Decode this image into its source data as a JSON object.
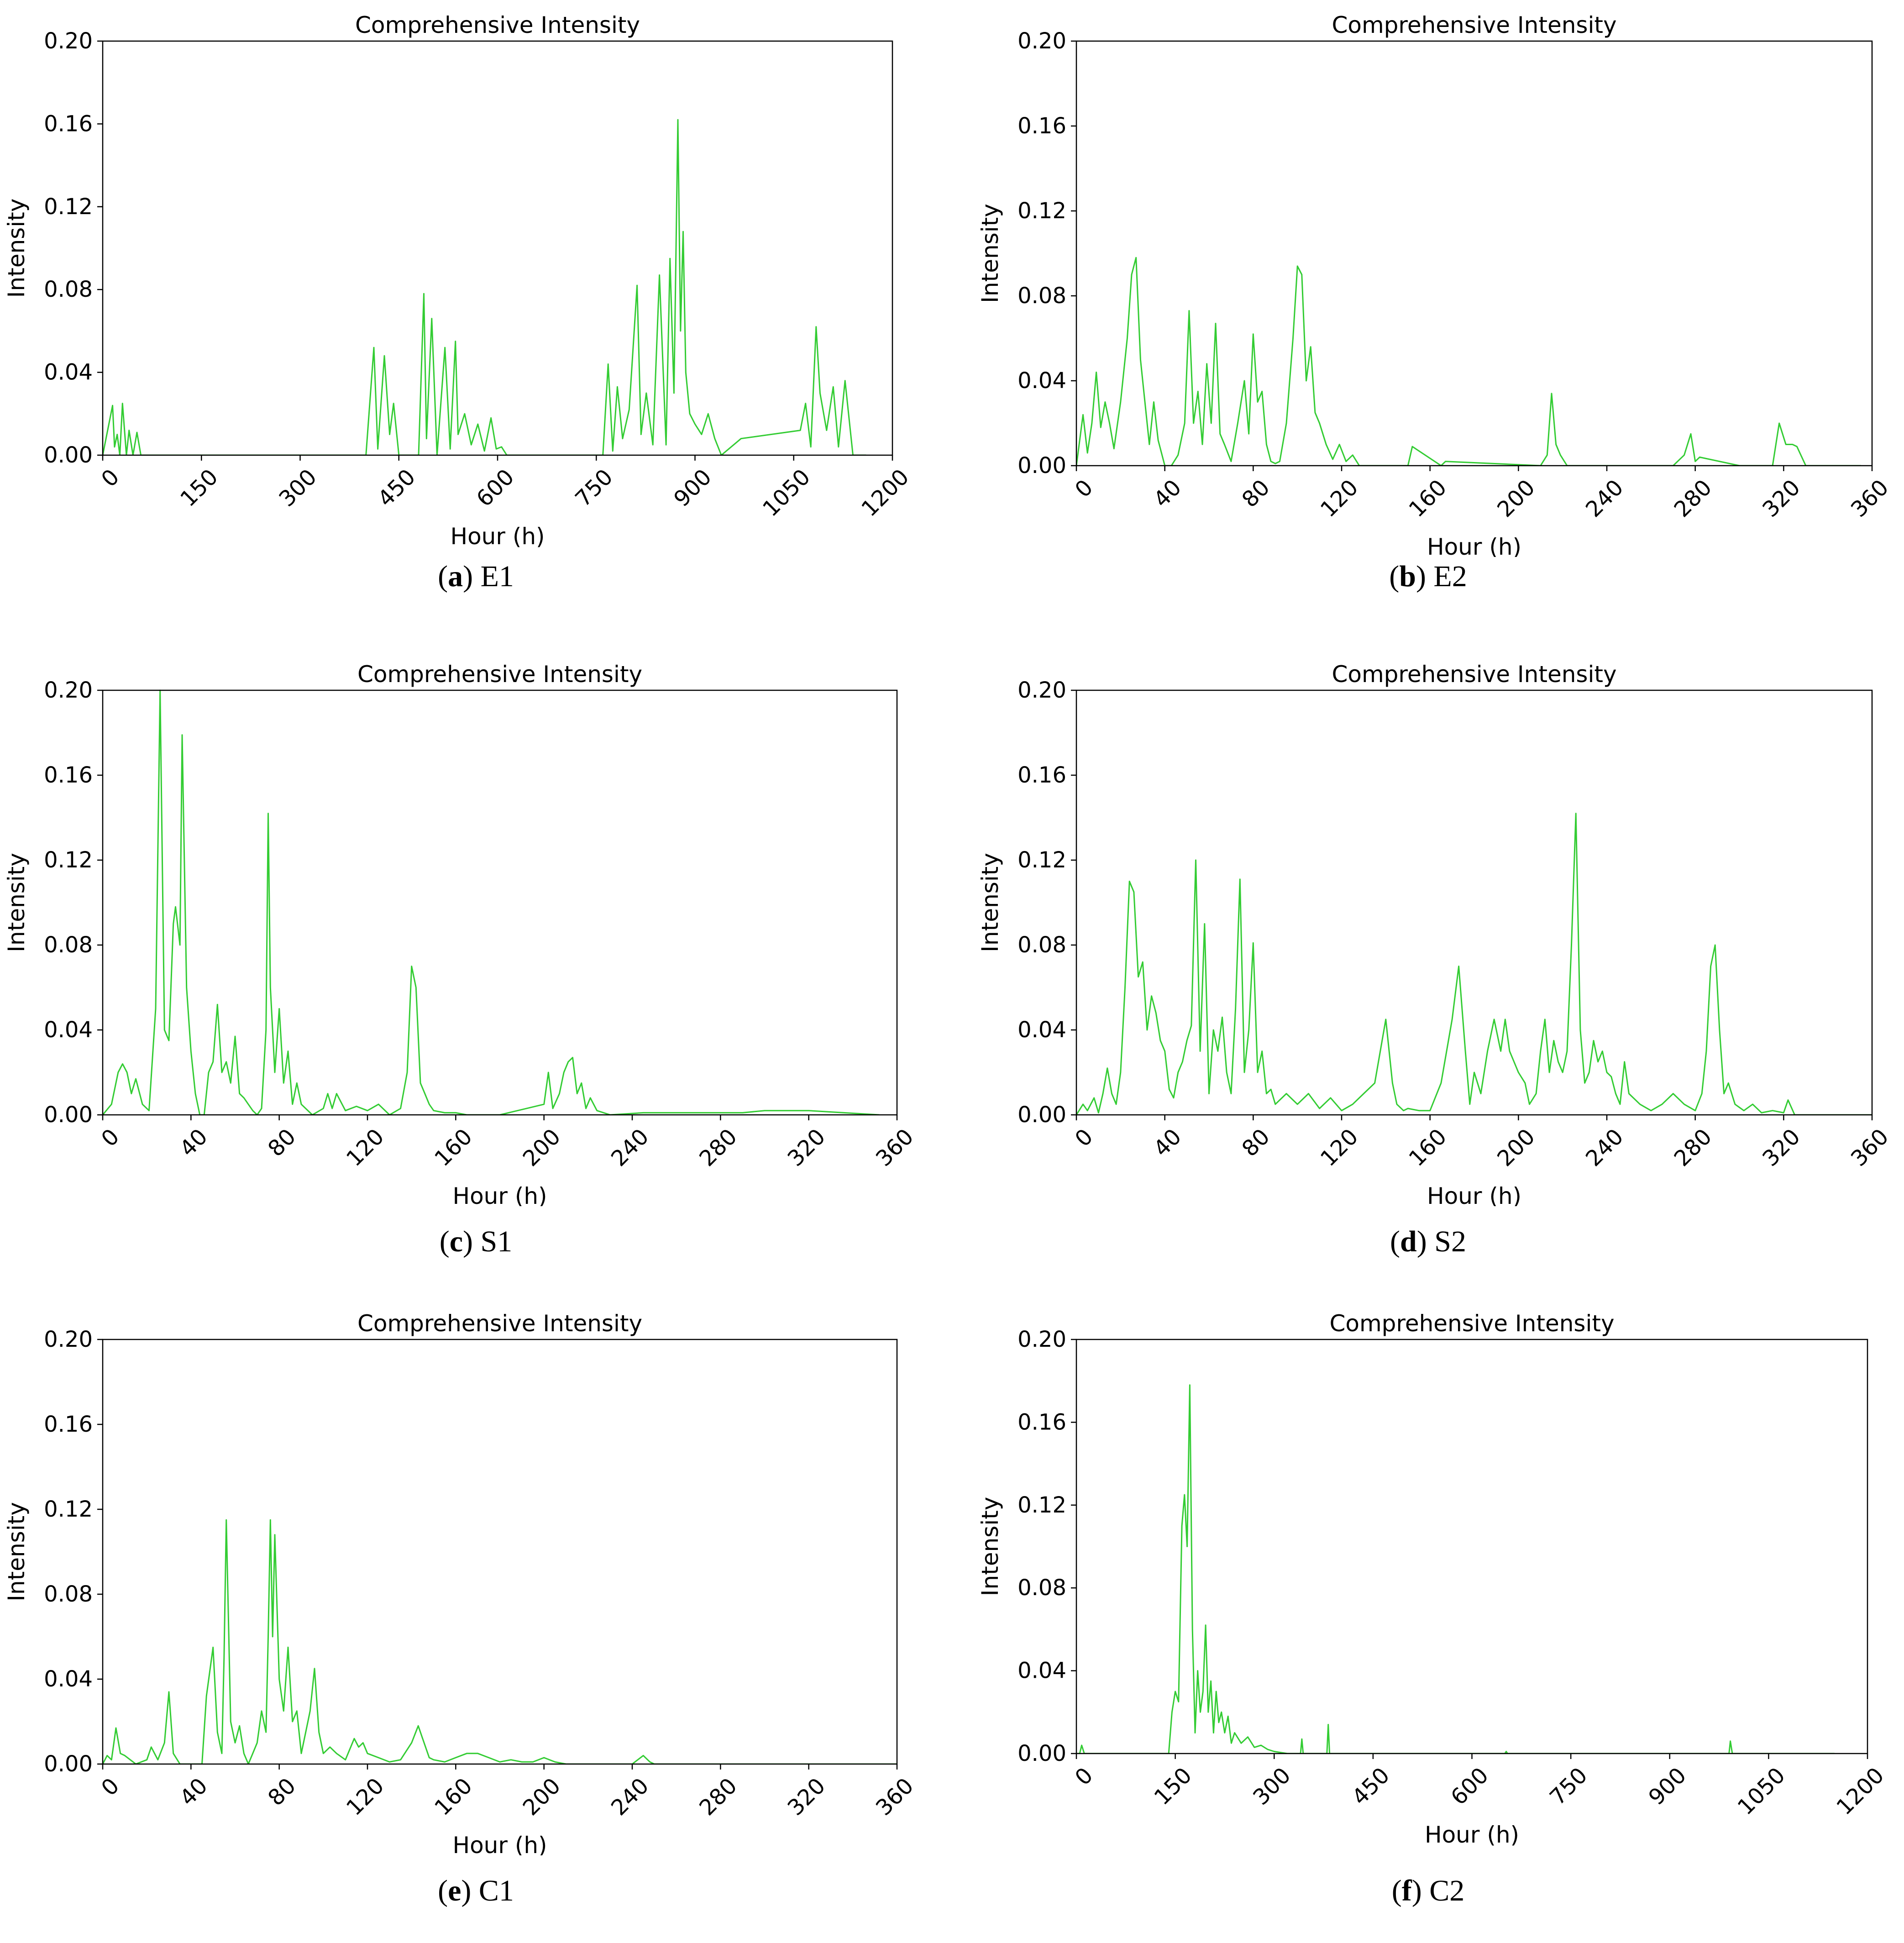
{
  "colors": {
    "line": "#33cc33",
    "axes": "#000000",
    "background": "#ffffff"
  },
  "panels": [
    {
      "letter": "a",
      "name": "E1",
      "title": "Comprehensive Intensity",
      "xlabel": "Hour (h)",
      "ylabel": "Intensity",
      "xticks": [
        "0",
        "150",
        "300",
        "450",
        "600",
        "750",
        "900",
        "1050",
        "1200"
      ],
      "yticks": [
        "0.00",
        "0.04",
        "0.08",
        "0.12",
        "0.16",
        "0.20"
      ]
    },
    {
      "letter": "b",
      "name": "E2",
      "title": "Comprehensive Intensity",
      "xlabel": "Hour (h)",
      "ylabel": "Intensity",
      "xticks": [
        "0",
        "40",
        "80",
        "120",
        "160",
        "200",
        "240",
        "280",
        "320",
        "360"
      ],
      "yticks": [
        "0.00",
        "0.04",
        "0.08",
        "0.12",
        "0.16",
        "0.20"
      ]
    },
    {
      "letter": "c",
      "name": "S1",
      "title": "Comprehensive Intensity",
      "xlabel": "Hour (h)",
      "ylabel": "Intensity",
      "xticks": [
        "0",
        "40",
        "80",
        "120",
        "160",
        "200",
        "240",
        "280",
        "320",
        "360"
      ],
      "yticks": [
        "0.00",
        "0.04",
        "0.08",
        "0.12",
        "0.16",
        "0.20"
      ]
    },
    {
      "letter": "d",
      "name": "S2",
      "title": "Comprehensive Intensity",
      "xlabel": "Hour (h)",
      "ylabel": "Intensity",
      "xticks": [
        "0",
        "40",
        "80",
        "120",
        "160",
        "200",
        "240",
        "280",
        "320",
        "360"
      ],
      "yticks": [
        "0.00",
        "0.04",
        "0.08",
        "0.12",
        "0.16",
        "0.20"
      ]
    },
    {
      "letter": "e",
      "name": "C1",
      "title": "Comprehensive Intensity",
      "xlabel": "Hour (h)",
      "ylabel": "Intensity",
      "xticks": [
        "0",
        "40",
        "80",
        "120",
        "160",
        "200",
        "240",
        "280",
        "320",
        "360"
      ],
      "yticks": [
        "0.00",
        "0.04",
        "0.08",
        "0.12",
        "0.16",
        "0.20"
      ]
    },
    {
      "letter": "f",
      "name": "C2",
      "title": "Comprehensive Intensity",
      "xlabel": "Hour (h)",
      "ylabel": "Intensity",
      "xticks": [
        "0",
        "150",
        "300",
        "450",
        "600",
        "750",
        "900",
        "1050",
        "1200"
      ],
      "yticks": [
        "0.00",
        "0.04",
        "0.08",
        "0.12",
        "0.16",
        "0.20"
      ]
    }
  ],
  "chart_data": [
    {
      "type": "line",
      "title": "Comprehensive Intensity",
      "xlabel": "Hour (h)",
      "ylabel": "Intensity",
      "xlim": [
        0,
        1200
      ],
      "ylim": [
        0,
        0.2
      ],
      "grid": false,
      "x": [
        0,
        15,
        18,
        22,
        26,
        30,
        36,
        40,
        46,
        52,
        58,
        64,
        400,
        412,
        418,
        428,
        436,
        442,
        450,
        480,
        488,
        492,
        500,
        508,
        520,
        528,
        536,
        540,
        550,
        560,
        570,
        580,
        590,
        598,
        606,
        614,
        760,
        768,
        775,
        782,
        790,
        800,
        812,
        818,
        826,
        836,
        846,
        856,
        862,
        868,
        874,
        878,
        882,
        886,
        892,
        900,
        910,
        920,
        930,
        940,
        970,
        1060,
        1068,
        1076,
        1084,
        1090,
        1100,
        1110,
        1118,
        1128,
        1140,
        1160
      ],
      "y": [
        0,
        0.024,
        0.004,
        0.01,
        0,
        0.025,
        0,
        0.012,
        0,
        0.011,
        0,
        0,
        0,
        0.052,
        0.003,
        0.048,
        0.01,
        0.025,
        0,
        0,
        0.078,
        0.008,
        0.066,
        0,
        0.052,
        0.003,
        0.055,
        0.01,
        0.02,
        0.005,
        0.015,
        0.002,
        0.018,
        0.003,
        0.004,
        0,
        0,
        0.044,
        0.002,
        0.033,
        0.008,
        0.022,
        0.082,
        0.01,
        0.03,
        0.005,
        0.087,
        0.005,
        0.095,
        0.03,
        0.162,
        0.06,
        0.108,
        0.04,
        0.02,
        0.015,
        0.01,
        0.02,
        0.008,
        0,
        0.008,
        0.012,
        0.025,
        0.004,
        0.062,
        0.03,
        0.012,
        0.033,
        0.004,
        0.036,
        0,
        0
      ]
    },
    {
      "type": "line",
      "title": "Comprehensive Intensity",
      "xlabel": "Hour (h)",
      "ylabel": "Intensity",
      "xlim": [
        0,
        360
      ],
      "ylim": [
        0,
        0.2
      ],
      "grid": false,
      "x": [
        0,
        3,
        5,
        7,
        9,
        11,
        13,
        15,
        17,
        20,
        23,
        25,
        27,
        29,
        31,
        33,
        35,
        37,
        40,
        43,
        46,
        49,
        51,
        53,
        55,
        57,
        59,
        61,
        63,
        65,
        67,
        70,
        73,
        76,
        78,
        80,
        82,
        84,
        86,
        88,
        90,
        92,
        95,
        98,
        100,
        102,
        104,
        106,
        108,
        110,
        113,
        116,
        119,
        122,
        125,
        128,
        131,
        135,
        150,
        152,
        165,
        167,
        210,
        213,
        215,
        217,
        219,
        222,
        270,
        275,
        278,
        280,
        282,
        300,
        315,
        318,
        321,
        324,
        326,
        330,
        355
      ],
      "y": [
        0,
        0.024,
        0.006,
        0.02,
        0.044,
        0.018,
        0.03,
        0.02,
        0.008,
        0.03,
        0.06,
        0.09,
        0.098,
        0.05,
        0.03,
        0.01,
        0.03,
        0.012,
        0,
        0,
        0.005,
        0.02,
        0.073,
        0.02,
        0.035,
        0.01,
        0.048,
        0.02,
        0.067,
        0.015,
        0.01,
        0.002,
        0.02,
        0.04,
        0.015,
        0.062,
        0.03,
        0.035,
        0.01,
        0.002,
        0.001,
        0.002,
        0.02,
        0.06,
        0.094,
        0.09,
        0.04,
        0.056,
        0.025,
        0.02,
        0.01,
        0.003,
        0.01,
        0.002,
        0.005,
        0,
        0,
        0,
        0,
        0.009,
        0,
        0.002,
        0,
        0.005,
        0.034,
        0.01,
        0.005,
        0,
        0,
        0.005,
        0.015,
        0.002,
        0.004,
        0,
        0,
        0.02,
        0.01,
        0.01,
        0.009,
        0,
        0
      ]
    },
    {
      "type": "line",
      "title": "Comprehensive Intensity",
      "xlabel": "Hour (h)",
      "ylabel": "Intensity",
      "xlim": [
        0,
        360
      ],
      "ylim": [
        0,
        0.2
      ],
      "grid": false,
      "x": [
        0,
        4,
        7,
        9,
        11,
        13,
        15,
        18,
        21,
        24,
        26,
        28,
        30,
        32,
        33,
        35,
        36,
        38,
        40,
        42,
        44,
        46,
        48,
        50,
        52,
        54,
        56,
        58,
        60,
        62,
        64,
        66,
        68,
        70,
        72,
        74,
        75,
        76,
        78,
        80,
        82,
        84,
        86,
        88,
        90,
        95,
        100,
        102,
        104,
        106,
        110,
        115,
        120,
        125,
        130,
        135,
        138,
        140,
        142,
        144,
        146,
        148,
        150,
        155,
        160,
        165,
        180,
        200,
        202,
        204,
        207,
        209,
        211,
        213,
        215,
        217,
        219,
        221,
        224,
        230,
        245,
        290,
        300,
        320,
        352
      ],
      "y": [
        0,
        0.005,
        0.02,
        0.024,
        0.02,
        0.01,
        0.017,
        0.005,
        0.002,
        0.05,
        0.2,
        0.04,
        0.035,
        0.09,
        0.098,
        0.08,
        0.179,
        0.06,
        0.03,
        0.01,
        0,
        0,
        0.02,
        0.025,
        0.052,
        0.02,
        0.025,
        0.015,
        0.037,
        0.01,
        0.008,
        0.005,
        0.002,
        0,
        0.003,
        0.04,
        0.142,
        0.06,
        0.02,
        0.05,
        0.015,
        0.03,
        0.005,
        0.015,
        0.005,
        0,
        0.003,
        0.01,
        0.003,
        0.01,
        0.002,
        0.004,
        0.002,
        0.005,
        0,
        0.003,
        0.02,
        0.07,
        0.06,
        0.015,
        0.01,
        0.005,
        0.002,
        0.001,
        0.001,
        0,
        0,
        0.005,
        0.02,
        0.003,
        0.01,
        0.02,
        0.025,
        0.027,
        0.01,
        0.015,
        0.003,
        0.008,
        0.002,
        0,
        0.001,
        0.001,
        0.002,
        0.002,
        0
      ]
    },
    {
      "type": "line",
      "title": "Comprehensive Intensity",
      "xlabel": "Hour (h)",
      "ylabel": "Intensity",
      "xlim": [
        0,
        360
      ],
      "ylim": [
        0,
        0.2
      ],
      "grid": false,
      "x": [
        0,
        3,
        5,
        8,
        10,
        12,
        14,
        16,
        18,
        20,
        22,
        24,
        26,
        28,
        30,
        32,
        34,
        36,
        38,
        40,
        42,
        44,
        46,
        48,
        50,
        52,
        54,
        56,
        58,
        60,
        62,
        64,
        66,
        68,
        70,
        72,
        74,
        76,
        78,
        80,
        82,
        84,
        86,
        88,
        90,
        95,
        100,
        105,
        110,
        115,
        120,
        125,
        130,
        135,
        140,
        143,
        145,
        148,
        150,
        155,
        160,
        165,
        170,
        173,
        176,
        178,
        180,
        183,
        186,
        189,
        192,
        194,
        196,
        198,
        200,
        203,
        205,
        208,
        210,
        212,
        214,
        216,
        218,
        220,
        222,
        224,
        226,
        228,
        230,
        232,
        234,
        236,
        238,
        240,
        242,
        244,
        246,
        248,
        250,
        255,
        260,
        265,
        270,
        275,
        280,
        283,
        285,
        287,
        289,
        291,
        293,
        295,
        298,
        302,
        306,
        310,
        315,
        320,
        322,
        325,
        360
      ],
      "y": [
        0,
        0.005,
        0.002,
        0.008,
        0.001,
        0.01,
        0.022,
        0.01,
        0.005,
        0.02,
        0.06,
        0.11,
        0.105,
        0.065,
        0.072,
        0.04,
        0.056,
        0.048,
        0.035,
        0.03,
        0.012,
        0.008,
        0.02,
        0.025,
        0.035,
        0.042,
        0.12,
        0.03,
        0.09,
        0.01,
        0.04,
        0.03,
        0.046,
        0.02,
        0.01,
        0.05,
        0.111,
        0.02,
        0.04,
        0.081,
        0.02,
        0.03,
        0.01,
        0.012,
        0.005,
        0.01,
        0.005,
        0.01,
        0.003,
        0.008,
        0.002,
        0.005,
        0.01,
        0.015,
        0.045,
        0.015,
        0.005,
        0.002,
        0.003,
        0.002,
        0.002,
        0.015,
        0.045,
        0.07,
        0.03,
        0.005,
        0.02,
        0.01,
        0.03,
        0.045,
        0.03,
        0.045,
        0.03,
        0.025,
        0.02,
        0.015,
        0.005,
        0.01,
        0.03,
        0.045,
        0.02,
        0.035,
        0.025,
        0.02,
        0.03,
        0.08,
        0.142,
        0.04,
        0.015,
        0.02,
        0.035,
        0.025,
        0.03,
        0.02,
        0.018,
        0.01,
        0.005,
        0.025,
        0.01,
        0.005,
        0.002,
        0.005,
        0.01,
        0.005,
        0.002,
        0.01,
        0.03,
        0.07,
        0.08,
        0.04,
        0.01,
        0.015,
        0.005,
        0.002,
        0.005,
        0.001,
        0.002,
        0.001,
        0.007,
        0,
        0
      ]
    },
    {
      "type": "line",
      "title": "Comprehensive Intensity",
      "xlabel": "Hour (h)",
      "ylabel": "Intensity",
      "xlim": [
        0,
        360
      ],
      "ylim": [
        0,
        0.2
      ],
      "grid": false,
      "x": [
        0,
        2,
        4,
        6,
        8,
        10,
        15,
        20,
        22,
        25,
        28,
        30,
        32,
        35,
        40,
        45,
        47,
        50,
        52,
        54,
        55,
        56,
        58,
        60,
        62,
        64,
        66,
        68,
        70,
        72,
        74,
        75,
        76,
        77,
        78,
        80,
        82,
        84,
        86,
        88,
        90,
        92,
        94,
        96,
        98,
        100,
        103,
        106,
        110,
        114,
        116,
        118,
        120,
        125,
        130,
        135,
        140,
        143,
        145,
        148,
        150,
        155,
        160,
        165,
        170,
        175,
        180,
        185,
        190,
        195,
        200,
        205,
        210,
        240,
        245,
        248,
        250,
        360
      ],
      "y": [
        0,
        0.004,
        0.002,
        0.017,
        0.005,
        0.004,
        0,
        0.002,
        0.008,
        0.002,
        0.01,
        0.034,
        0.005,
        0,
        0,
        0,
        0.032,
        0.055,
        0.015,
        0.005,
        0.05,
        0.115,
        0.02,
        0.01,
        0.018,
        0.005,
        0,
        0.005,
        0.01,
        0.025,
        0.015,
        0.06,
        0.115,
        0.06,
        0.108,
        0.04,
        0.025,
        0.055,
        0.02,
        0.025,
        0.005,
        0.015,
        0.025,
        0.045,
        0.015,
        0.005,
        0.008,
        0.005,
        0.002,
        0.012,
        0.008,
        0.01,
        0.005,
        0.003,
        0.001,
        0.002,
        0.01,
        0.018,
        0.012,
        0.003,
        0.002,
        0.001,
        0.003,
        0.005,
        0.005,
        0.003,
        0.001,
        0.002,
        0.001,
        0.001,
        0.003,
        0.001,
        0,
        0,
        0.004,
        0.001,
        0,
        0
      ]
    },
    {
      "type": "line",
      "title": "Comprehensive Intensity",
      "xlabel": "Hour (h)",
      "ylabel": "Intensity",
      "xlim": [
        0,
        1200
      ],
      "ylim": [
        0,
        0.2
      ],
      "grid": false,
      "x": [
        0,
        5,
        8,
        12,
        140,
        145,
        150,
        155,
        160,
        164,
        168,
        172,
        176,
        180,
        184,
        188,
        192,
        196,
        200,
        204,
        208,
        212,
        216,
        220,
        225,
        230,
        235,
        240,
        250,
        260,
        270,
        280,
        290,
        300,
        320,
        340,
        342,
        344,
        380,
        382,
        384,
        500,
        650,
        652,
        654,
        990,
        992,
        995,
        1100,
        1150
      ],
      "y": [
        0,
        0,
        0.004,
        0,
        0,
        0.02,
        0.03,
        0.025,
        0.11,
        0.125,
        0.1,
        0.178,
        0.06,
        0.01,
        0.04,
        0.02,
        0.03,
        0.062,
        0.02,
        0.035,
        0.01,
        0.03,
        0.015,
        0.02,
        0.01,
        0.018,
        0.005,
        0.01,
        0.005,
        0.008,
        0.003,
        0.004,
        0.002,
        0.001,
        0,
        0,
        0.007,
        0,
        0,
        0.014,
        0,
        0,
        0,
        0.001,
        0,
        0,
        0.006,
        0,
        0,
        0
      ]
    }
  ]
}
